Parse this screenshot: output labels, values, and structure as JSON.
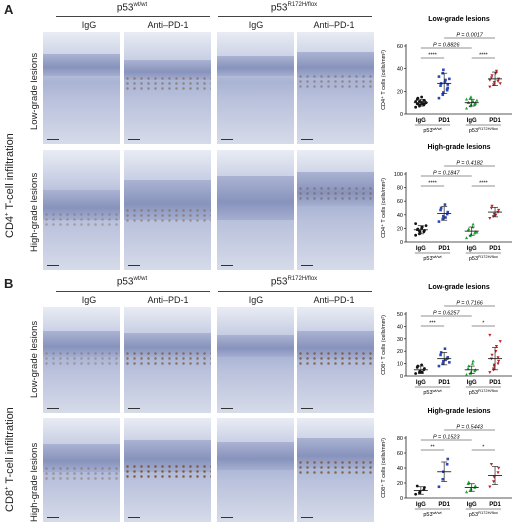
{
  "panel_a": {
    "letter": "A",
    "group_left_base": "p53",
    "group_left_sup": "wt/wt",
    "group_right_base": "p53",
    "group_right_sup": "R172H/flox",
    "col_igg": "IgG",
    "col_pd1": "Anti–PD-1",
    "row_low": "Low-grade lesions",
    "row_high": "High-grade lesions",
    "side_label_base": "CD4",
    "side_label_sup": "+",
    "side_label_rest": " T-cell infiltration"
  },
  "panel_b": {
    "letter": "B",
    "group_left_base": "p53",
    "group_left_sup": "wt/wt",
    "group_right_base": "p53",
    "group_right_sup": "R172H/flox",
    "col_igg": "IgG",
    "col_pd1": "Anti–PD-1",
    "row_low": "Low-grade lesions",
    "row_high": "High-grade lesions",
    "side_label_base": "CD8",
    "side_label_sup": "+",
    "side_label_rest": " T-cell infiltration"
  },
  "chart_data": [
    {
      "type": "scatter",
      "title": "Low-grade lesions",
      "ylabel": "CD4⁺ T cells (cells/mm²)",
      "ylim": [
        0,
        60
      ],
      "yticks": [
        0,
        20,
        40,
        60
      ],
      "categories": [
        "IgG",
        "PD1",
        "IgG",
        "PD1"
      ],
      "group_labels": [
        "p53wt/wt",
        "p53R172H/flox"
      ],
      "colors": [
        "#111111",
        "#2b47b8",
        "#22a035",
        "#b8262c"
      ],
      "means": [
        10,
        27,
        10,
        31
      ],
      "sds": [
        3,
        9,
        3,
        6
      ],
      "points": [
        [
          6,
          7,
          8,
          8,
          9,
          9,
          9,
          10,
          10,
          10,
          11,
          11,
          11,
          12,
          12,
          13,
          14,
          15,
          9,
          10
        ],
        [
          14,
          17,
          19,
          21,
          23,
          25,
          27,
          28,
          30,
          31,
          33,
          36,
          39,
          22,
          26
        ],
        [
          5,
          7,
          8,
          9,
          9,
          10,
          10,
          11,
          11,
          12,
          13,
          14,
          15,
          8,
          10
        ],
        [
          24,
          26,
          28,
          29,
          31,
          32,
          34,
          36,
          38,
          27,
          30
        ]
      ],
      "annotations": [
        "P = 0.8826",
        "P = 0.0017",
        "****",
        "****"
      ]
    },
    {
      "type": "scatter",
      "title": "High-grade lesions",
      "ylabel": "CD4⁺ T cells (cells/mm²)",
      "ylim": [
        0,
        100
      ],
      "yticks": [
        0,
        20,
        40,
        60,
        80,
        100
      ],
      "categories": [
        "IgG",
        "PD1",
        "IgG",
        "PD1"
      ],
      "group_labels": [
        "p53wt/wt",
        "p53R172H/flox"
      ],
      "colors": [
        "#111111",
        "#2b47b8",
        "#22a035",
        "#b8262c"
      ],
      "means": [
        18,
        42,
        16,
        44
      ],
      "sds": [
        6,
        10,
        6,
        7
      ],
      "points": [
        [
          10,
          12,
          14,
          15,
          17,
          18,
          19,
          20,
          22,
          24,
          27,
          16,
          13
        ],
        [
          30,
          34,
          38,
          41,
          44,
          47,
          50,
          55,
          36
        ],
        [
          6,
          9,
          11,
          13,
          15,
          17,
          19,
          22,
          26,
          14
        ],
        [
          35,
          38,
          41,
          44,
          47,
          50,
          53,
          40
        ]
      ],
      "annotations": [
        "P = 0.1847",
        "P = 0.4182",
        "****",
        "****"
      ]
    },
    {
      "type": "scatter",
      "title": "Low-grade lesions",
      "ylabel": "CD8⁺ T cells (cells/mm²)",
      "ylim": [
        0,
        50
      ],
      "yticks": [
        0,
        10,
        20,
        30,
        40,
        50
      ],
      "categories": [
        "IgG",
        "PD1",
        "IgG",
        "PD1"
      ],
      "group_labels": [
        "p53wt/wt",
        "p53R172H/flox"
      ],
      "colors": [
        "#111111",
        "#2b47b8",
        "#22a035",
        "#b8262c"
      ],
      "means": [
        5,
        14,
        5,
        14
      ],
      "sds": [
        3,
        5,
        3,
        9
      ],
      "points": [
        [
          2,
          3,
          4,
          5,
          6,
          7,
          8,
          9,
          3
        ],
        [
          8,
          10,
          12,
          14,
          15,
          17,
          19,
          22,
          13,
          11
        ],
        [
          1,
          2,
          3,
          4,
          5,
          6,
          8,
          10,
          12
        ],
        [
          3,
          5,
          8,
          10,
          12,
          14,
          17,
          20,
          24,
          28,
          33,
          6,
          9,
          15
        ]
      ],
      "annotations": [
        "***",
        "P = 0.6257",
        "P = 0.7166",
        "*"
      ]
    },
    {
      "type": "scatter",
      "title": "High-grade lesions",
      "ylabel": "CD8⁺ T cells (cells/mm²)",
      "ylim": [
        0,
        80
      ],
      "yticks": [
        0,
        20,
        40,
        60,
        80
      ],
      "categories": [
        "IgG",
        "PD1",
        "IgG",
        "PD1"
      ],
      "group_labels": [
        "p53wt/wt",
        "p53R172H/flox"
      ],
      "colors": [
        "#111111",
        "#2b47b8",
        "#22a035",
        "#b8262c"
      ],
      "means": [
        10,
        35,
        14,
        30
      ],
      "sds": [
        5,
        13,
        5,
        12
      ],
      "points": [
        [
          5,
          7,
          9,
          11,
          14,
          16
        ],
        [
          15,
          25,
          35,
          45,
          52
        ],
        [
          8,
          10,
          12,
          14,
          16,
          19,
          21
        ],
        [
          15,
          22,
          28,
          34,
          40,
          45
        ]
      ],
      "annotations": [
        "**",
        "P = 0.1523",
        "P = 0.5443",
        "*"
      ]
    }
  ],
  "xgroup_labels": {
    "wt_base": "p53",
    "wt_sup": "wt/wt",
    "mut_base": "p53",
    "mut_sup": "R172H/flox"
  }
}
